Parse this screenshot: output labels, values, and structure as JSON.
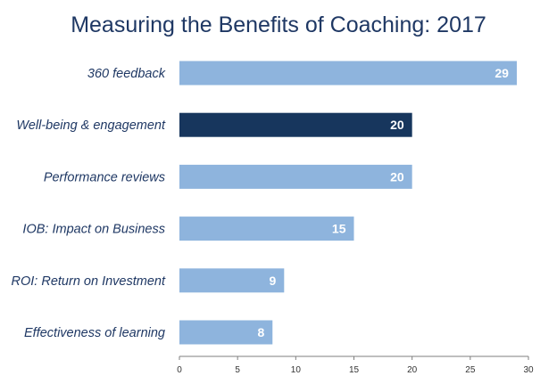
{
  "chart_data": {
    "type": "bar",
    "orientation": "horizontal",
    "title": "Measuring the Benefits of Coaching: 2017",
    "categories": [
      "360 feedback",
      "Well-being & engagement",
      "Performance reviews",
      "IOB: Impact on Business",
      "ROI: Return on Investment",
      "Effectiveness of learning"
    ],
    "values": [
      29,
      20,
      20,
      15,
      9,
      8
    ],
    "highlight_index": 1,
    "xlim": [
      0,
      30
    ],
    "xticks": [
      0,
      5,
      10,
      15,
      20,
      25,
      30
    ],
    "grid": false,
    "colors": {
      "bar": "#8eb4dd",
      "highlight": "#17365d",
      "axis": "#7f7f7f"
    }
  }
}
